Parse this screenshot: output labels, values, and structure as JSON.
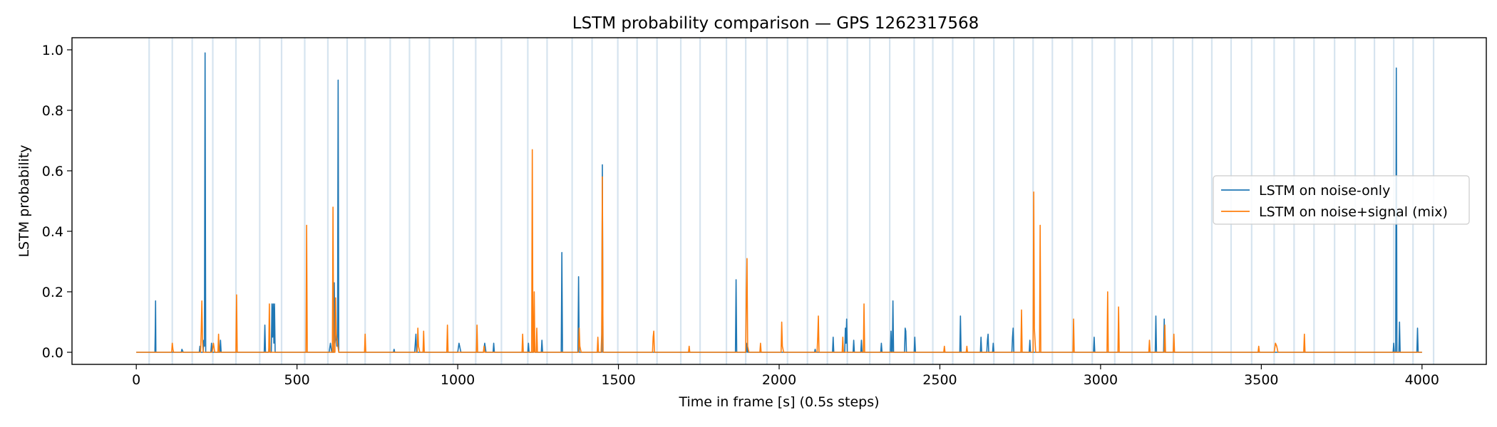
{
  "chart_data": {
    "type": "line",
    "title": "LSTM probability comparison — GPS 1262317568",
    "xlabel": "Time in frame [s] (0.5s steps)",
    "ylabel": "LSTM probability",
    "xlim": [
      -200,
      4200
    ],
    "ylim": [
      -0.04,
      1.04
    ],
    "xticks": [
      0,
      500,
      1000,
      1500,
      2000,
      2500,
      3000,
      3500,
      4000
    ],
    "xtick_labels": [
      "0",
      "500",
      "1000",
      "1500",
      "2000",
      "2500",
      "3000",
      "3500",
      "4000"
    ],
    "yticks": [
      0.0,
      0.2,
      0.4,
      0.6,
      0.8,
      1.0
    ],
    "ytick_labels": [
      "0.0",
      "0.2",
      "0.4",
      "0.6",
      "0.8",
      "1.0"
    ],
    "grid": false,
    "legend_position": "center-right",
    "background_markers": {
      "color": "#c9dbea",
      "x": [
        40,
        112,
        174,
        238,
        310,
        384,
        452,
        524,
        596,
        656,
        712,
        790,
        850,
        912,
        986,
        1056,
        1136,
        1218,
        1278,
        1356,
        1418,
        1498,
        1558,
        1620,
        1694,
        1754,
        1836,
        1896,
        1962,
        2026,
        2088,
        2150,
        2212,
        2282,
        2344,
        2420,
        2478,
        2540,
        2606,
        2668,
        2730,
        2790,
        2850,
        2912,
        2974,
        3044,
        3098,
        3160,
        3226,
        3286,
        3346,
        3406,
        3470,
        3540,
        3602,
        3664,
        3728,
        3792,
        3852,
        3912,
        3972,
        4036
      ]
    },
    "series": [
      {
        "name": "LSTM on noise-only",
        "color": "#1f77b4",
        "points": [
          [
            0,
            0
          ],
          [
            58,
            0
          ],
          [
            59,
            0.07
          ],
          [
            60,
            0.17
          ],
          [
            61,
            0
          ],
          [
            140,
            0
          ],
          [
            142,
            0.01
          ],
          [
            146,
            0
          ],
          [
            196,
            0
          ],
          [
            198,
            0.02
          ],
          [
            200,
            0
          ],
          [
            208,
            0
          ],
          [
            210,
            0.04
          ],
          [
            212,
            0.02
          ],
          [
            214,
            0.99
          ],
          [
            216,
            0
          ],
          [
            232,
            0
          ],
          [
            234,
            0.03
          ],
          [
            236,
            0
          ],
          [
            260,
            0
          ],
          [
            262,
            0.04
          ],
          [
            264,
            0
          ],
          [
            398,
            0
          ],
          [
            400,
            0.09
          ],
          [
            402,
            0
          ],
          [
            412,
            0
          ],
          [
            414,
            0.04
          ],
          [
            416,
            0
          ],
          [
            420,
            0
          ],
          [
            422,
            0.16
          ],
          [
            424,
            0.05
          ],
          [
            426,
            0.16
          ],
          [
            428,
            0.03
          ],
          [
            430,
            0.16
          ],
          [
            432,
            0
          ],
          [
            600,
            0
          ],
          [
            604,
            0.03
          ],
          [
            608,
            0
          ],
          [
            614,
            0
          ],
          [
            616,
            0.23
          ],
          [
            618,
            0.03
          ],
          [
            622,
            0.06
          ],
          [
            624,
            0.02
          ],
          [
            626,
            0.02
          ],
          [
            628,
            0.9
          ],
          [
            630,
            0
          ],
          [
            800,
            0
          ],
          [
            802,
            0.01
          ],
          [
            804,
            0
          ],
          [
            866,
            0
          ],
          [
            870,
            0.06
          ],
          [
            872,
            0
          ],
          [
            1000,
            0
          ],
          [
            1004,
            0.03
          ],
          [
            1006,
            0.02
          ],
          [
            1010,
            0
          ],
          [
            1080,
            0
          ],
          [
            1084,
            0.03
          ],
          [
            1088,
            0
          ],
          [
            1110,
            0
          ],
          [
            1112,
            0.03
          ],
          [
            1114,
            0
          ],
          [
            1218,
            0
          ],
          [
            1220,
            0.03
          ],
          [
            1222,
            0
          ],
          [
            1236,
            0
          ],
          [
            1238,
            0.03
          ],
          [
            1240,
            0
          ],
          [
            1260,
            0
          ],
          [
            1262,
            0.04
          ],
          [
            1264,
            0
          ],
          [
            1322,
            0
          ],
          [
            1324,
            0.33
          ],
          [
            1326,
            0
          ],
          [
            1374,
            0
          ],
          [
            1376,
            0.25
          ],
          [
            1378,
            0
          ],
          [
            1448,
            0
          ],
          [
            1450,
            0.62
          ],
          [
            1452,
            0
          ],
          [
            1864,
            0
          ],
          [
            1866,
            0.24
          ],
          [
            1868,
            0
          ],
          [
            1898,
            0
          ],
          [
            1900,
            0.03
          ],
          [
            1902,
            0
          ],
          [
            2110,
            0
          ],
          [
            2112,
            0.01
          ],
          [
            2114,
            0
          ],
          [
            2166,
            0
          ],
          [
            2168,
            0.05
          ],
          [
            2170,
            0
          ],
          [
            2204,
            0
          ],
          [
            2206,
            0.08
          ],
          [
            2208,
            0.03
          ],
          [
            2210,
            0.11
          ],
          [
            2212,
            0
          ],
          [
            2230,
            0
          ],
          [
            2232,
            0.04
          ],
          [
            2234,
            0
          ],
          [
            2254,
            0
          ],
          [
            2256,
            0.04
          ],
          [
            2258,
            0
          ],
          [
            2316,
            0
          ],
          [
            2318,
            0.03
          ],
          [
            2320,
            0
          ],
          [
            2346,
            0
          ],
          [
            2348,
            0.07
          ],
          [
            2350,
            0
          ],
          [
            2352,
            0
          ],
          [
            2354,
            0.17
          ],
          [
            2356,
            0
          ],
          [
            2390,
            0
          ],
          [
            2392,
            0.08
          ],
          [
            2394,
            0.07
          ],
          [
            2396,
            0
          ],
          [
            2420,
            0
          ],
          [
            2422,
            0.05
          ],
          [
            2424,
            0
          ],
          [
            2562,
            0
          ],
          [
            2564,
            0.12
          ],
          [
            2566,
            0
          ],
          [
            2626,
            0
          ],
          [
            2628,
            0.05
          ],
          [
            2630,
            0
          ],
          [
            2646,
            0
          ],
          [
            2648,
            0.04
          ],
          [
            2650,
            0.06
          ],
          [
            2652,
            0
          ],
          [
            2664,
            0
          ],
          [
            2666,
            0.03
          ],
          [
            2668,
            0
          ],
          [
            2724,
            0
          ],
          [
            2726,
            0.05
          ],
          [
            2728,
            0.08
          ],
          [
            2730,
            0
          ],
          [
            2778,
            0
          ],
          [
            2780,
            0.04
          ],
          [
            2782,
            0
          ],
          [
            2978,
            0
          ],
          [
            2980,
            0.05
          ],
          [
            2982,
            0
          ],
          [
            3170,
            0
          ],
          [
            3172,
            0.12
          ],
          [
            3174,
            0
          ],
          [
            3196,
            0
          ],
          [
            3198,
            0.11
          ],
          [
            3200,
            0
          ],
          [
            3910,
            0
          ],
          [
            3912,
            0.03
          ],
          [
            3914,
            0
          ],
          [
            3918,
            0
          ],
          [
            3920,
            0.94
          ],
          [
            3922,
            0
          ],
          [
            3928,
            0
          ],
          [
            3930,
            0.1
          ],
          [
            3932,
            0
          ],
          [
            3984,
            0
          ],
          [
            3986,
            0.08
          ],
          [
            3988,
            0
          ],
          [
            4000,
            0
          ]
        ]
      },
      {
        "name": "LSTM on noise+signal (mix)",
        "color": "#ff7f0e",
        "points": [
          [
            0,
            0
          ],
          [
            110,
            0
          ],
          [
            112,
            0.03
          ],
          [
            114,
            0.01
          ],
          [
            116,
            0
          ],
          [
            200,
            0
          ],
          [
            202,
            0.07
          ],
          [
            204,
            0.17
          ],
          [
            206,
            0.04
          ],
          [
            208,
            0
          ],
          [
            236,
            0
          ],
          [
            240,
            0.03
          ],
          [
            244,
            0
          ],
          [
            254,
            0
          ],
          [
            256,
            0.06
          ],
          [
            258,
            0
          ],
          [
            310,
            0
          ],
          [
            312,
            0.19
          ],
          [
            314,
            0
          ],
          [
            412,
            0
          ],
          [
            414,
            0.16
          ],
          [
            416,
            0
          ],
          [
            528,
            0
          ],
          [
            530,
            0.42
          ],
          [
            532,
            0
          ],
          [
            610,
            0
          ],
          [
            612,
            0.48
          ],
          [
            614,
            0
          ],
          [
            618,
            0
          ],
          [
            620,
            0.18
          ],
          [
            622,
            0.06
          ],
          [
            626,
            0.03
          ],
          [
            630,
            0
          ],
          [
            710,
            0
          ],
          [
            712,
            0.06
          ],
          [
            714,
            0
          ],
          [
            874,
            0
          ],
          [
            876,
            0.08
          ],
          [
            878,
            0.02
          ],
          [
            882,
            0
          ],
          [
            892,
            0
          ],
          [
            894,
            0.07
          ],
          [
            896,
            0
          ],
          [
            966,
            0
          ],
          [
            968,
            0.09
          ],
          [
            970,
            0
          ],
          [
            1058,
            0
          ],
          [
            1060,
            0.09
          ],
          [
            1062,
            0
          ],
          [
            1080,
            0
          ],
          [
            1082,
            0.02
          ],
          [
            1084,
            0
          ],
          [
            1200,
            0
          ],
          [
            1202,
            0.06
          ],
          [
            1204,
            0
          ],
          [
            1230,
            0
          ],
          [
            1232,
            0.67
          ],
          [
            1234,
            0
          ],
          [
            1236,
            0
          ],
          [
            1238,
            0.2
          ],
          [
            1240,
            0
          ],
          [
            1244,
            0
          ],
          [
            1246,
            0.08
          ],
          [
            1248,
            0
          ],
          [
            1376,
            0
          ],
          [
            1378,
            0.08
          ],
          [
            1380,
            0.02
          ],
          [
            1384,
            0
          ],
          [
            1434,
            0
          ],
          [
            1436,
            0.05
          ],
          [
            1438,
            0
          ],
          [
            1446,
            0
          ],
          [
            1448,
            0.06
          ],
          [
            1450,
            0.58
          ],
          [
            1452,
            0
          ],
          [
            1606,
            0
          ],
          [
            1608,
            0.05
          ],
          [
            1610,
            0.07
          ],
          [
            1612,
            0
          ],
          [
            1718,
            0
          ],
          [
            1720,
            0.02
          ],
          [
            1722,
            0
          ],
          [
            1896,
            0
          ],
          [
            1898,
            0.2
          ],
          [
            1900,
            0.31
          ],
          [
            1902,
            0.02
          ],
          [
            1906,
            0
          ],
          [
            1940,
            0
          ],
          [
            1942,
            0.03
          ],
          [
            1944,
            0
          ],
          [
            2006,
            0
          ],
          [
            2008,
            0.1
          ],
          [
            2010,
            0.02
          ],
          [
            2014,
            0
          ],
          [
            2118,
            0
          ],
          [
            2120,
            0.05
          ],
          [
            2122,
            0.12
          ],
          [
            2124,
            0
          ],
          [
            2196,
            0
          ],
          [
            2198,
            0.05
          ],
          [
            2200,
            0
          ],
          [
            2262,
            0
          ],
          [
            2264,
            0.16
          ],
          [
            2266,
            0
          ],
          [
            2512,
            0
          ],
          [
            2514,
            0.02
          ],
          [
            2516,
            0
          ],
          [
            2582,
            0
          ],
          [
            2584,
            0.02
          ],
          [
            2586,
            0
          ],
          [
            2752,
            0
          ],
          [
            2754,
            0.14
          ],
          [
            2756,
            0
          ],
          [
            2790,
            0
          ],
          [
            2792,
            0.53
          ],
          [
            2794,
            0.08
          ],
          [
            2798,
            0
          ],
          [
            2810,
            0
          ],
          [
            2812,
            0.42
          ],
          [
            2814,
            0
          ],
          [
            2914,
            0
          ],
          [
            2916,
            0.11
          ],
          [
            2918,
            0
          ],
          [
            3020,
            0
          ],
          [
            3022,
            0.2
          ],
          [
            3024,
            0
          ],
          [
            3054,
            0
          ],
          [
            3056,
            0.15
          ],
          [
            3058,
            0
          ],
          [
            3150,
            0
          ],
          [
            3152,
            0.04
          ],
          [
            3154,
            0
          ],
          [
            3198,
            0
          ],
          [
            3200,
            0.09
          ],
          [
            3202,
            0
          ],
          [
            3226,
            0
          ],
          [
            3228,
            0.06
          ],
          [
            3230,
            0
          ],
          [
            3490,
            0
          ],
          [
            3492,
            0.02
          ],
          [
            3494,
            0
          ],
          [
            3540,
            0
          ],
          [
            3544,
            0.03
          ],
          [
            3548,
            0.02
          ],
          [
            3552,
            0
          ],
          [
            3632,
            0
          ],
          [
            3634,
            0.06
          ],
          [
            3636,
            0
          ],
          [
            4000,
            0
          ]
        ]
      }
    ]
  }
}
